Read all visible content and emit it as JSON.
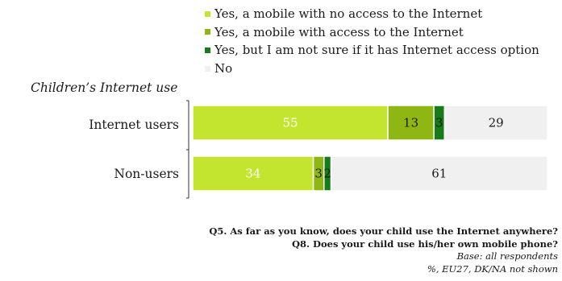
{
  "chart_data": {
    "type": "bar",
    "orientation": "horizontal",
    "stacked": true,
    "group_title": "Children’s  Internet use",
    "categories": [
      "Internet users",
      "Non-users"
    ],
    "series": [
      {
        "name": "Yes, a mobile with no access to the Internet",
        "color": "#c3e52f",
        "values": [
          55,
          34
        ],
        "label_color": "#ffffff"
      },
      {
        "name": "Yes, a mobile with access to the Internet",
        "color": "#8fb714",
        "values": [
          13,
          3
        ],
        "label_color": "#1a1a1a"
      },
      {
        "name": "Yes, but I am not sure if it has Internet access option",
        "color": "#167c17",
        "values": [
          3,
          2
        ],
        "label_color": "#1a1a1a"
      },
      {
        "name": "No",
        "color": "#f0f0f0",
        "values": [
          29,
          61
        ],
        "label_color": "#1a1a1a"
      }
    ],
    "xlim": [
      0,
      100
    ],
    "grid": false,
    "legend_position": "top"
  },
  "notes": {
    "q5": "Q5. As far as you know, does your child use the Internet anywhere?",
    "q8": "Q8. Does your child use his/her own mobile phone?",
    "base": "Base: all respondents",
    "scope": "%, EU27, DK/NA not shown"
  }
}
